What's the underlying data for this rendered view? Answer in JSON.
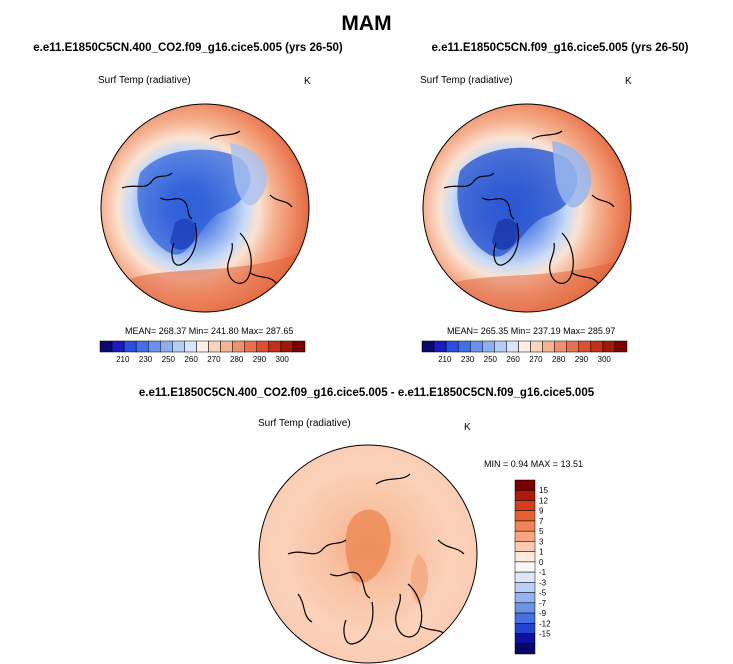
{
  "figure": {
    "season": "MAM"
  },
  "panels": [
    {
      "case": "e.e11.E1850C5CN.400_CO2.f09_g16.cice5.005 (yrs 26-50)",
      "variable": "Surf Temp (radiative)",
      "units": "K",
      "stats": "MEAN= 268.37  Min= 241.80  Max= 287.65"
    },
    {
      "case": "e.e11.E1850C5CN.f09_g16.cice5.005 (yrs 26-50)",
      "variable": "Surf Temp (radiative)",
      "units": "K",
      "stats": "MEAN= 265.35  Min= 237.19  Max= 285.97"
    },
    {
      "case": "e.e11.E1850C5CN.400_CO2.f09_g16.cice5.005 - e.e11.E1850C5CN.f09_g16.cice5.005",
      "variable": "Surf Temp (radiative)",
      "units": "K",
      "stats": "MIN =  0.94 MAX =  13.51"
    }
  ],
  "colorbar_abs": {
    "labels": [
      "210",
      "230",
      "250",
      "260",
      "270",
      "280",
      "290",
      "300"
    ],
    "colors": [
      "#0a0a6e",
      "#1a1ac0",
      "#2a4ee0",
      "#4070e8",
      "#6890ec",
      "#8eaef0",
      "#b4ccf6",
      "#d8e4fa",
      "#fdeee4",
      "#fbd2bc",
      "#f6b494",
      "#f09070",
      "#e8704e",
      "#dc5030",
      "#c43018",
      "#a01808",
      "#780000"
    ]
  },
  "colorbar_diff": {
    "labels": [
      "15",
      "12",
      "9",
      "7",
      "5",
      "3",
      "1",
      "0",
      "-1",
      "-3",
      "-5",
      "-7",
      "-9",
      "-12",
      "-15"
    ],
    "colors": [
      "#780000",
      "#b01808",
      "#d43c1c",
      "#e8602e",
      "#f08458",
      "#f6a682",
      "#facab0",
      "#fde8dc",
      "#f7f7f7",
      "#dce8fa",
      "#b8d0f6",
      "#92b2f0",
      "#6c92ea",
      "#4470e4",
      "#2244d0",
      "#1010a0",
      "#08086a"
    ]
  }
}
